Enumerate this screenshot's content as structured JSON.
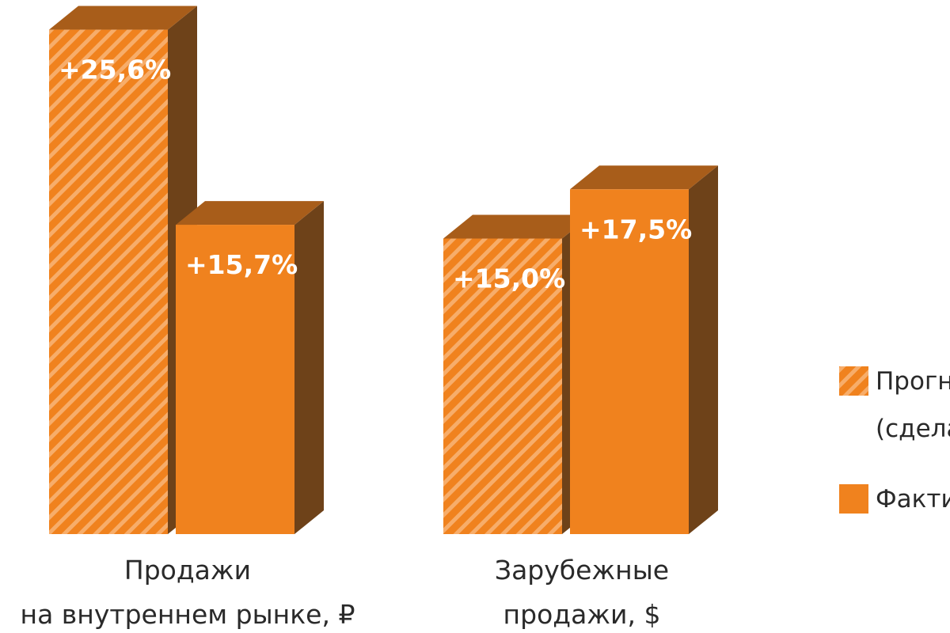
{
  "chart_data": {
    "type": "bar3d",
    "categories": [
      "Продажи\nна внутреннем рынке, ₽",
      "Зарубежные\nпродажи, $"
    ],
    "series": [
      {
        "name": "Прогн\n(сдела",
        "color": "#f0821e",
        "pattern": "hatch",
        "values": [
          25.6,
          15.0
        ],
        "value_labels": [
          "+25,6%",
          "+15,0%"
        ]
      },
      {
        "name": "Факти",
        "color": "#f0821e",
        "pattern": "solid",
        "values": [
          15.7,
          17.5
        ],
        "value_labels": [
          "+15,7%",
          "+17,5%"
        ]
      }
    ]
  }
}
